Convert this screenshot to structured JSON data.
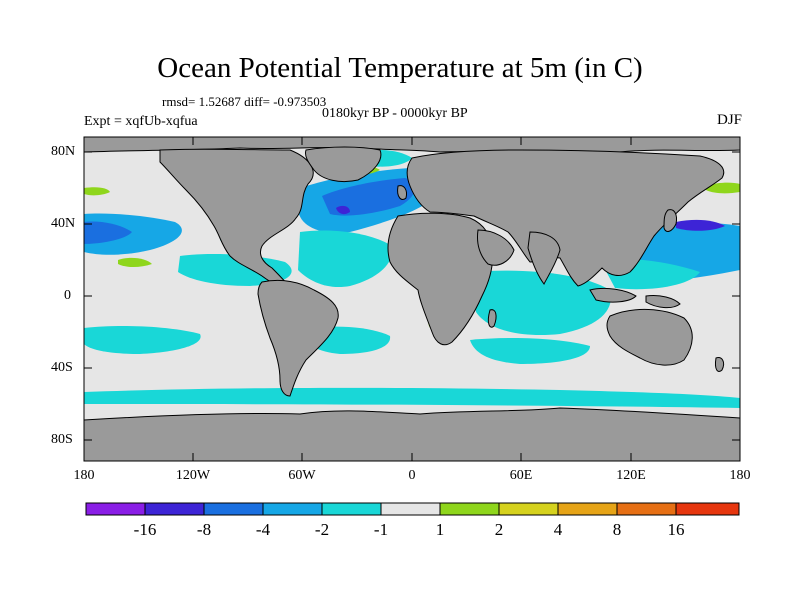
{
  "title": "Ocean Potential Temperature at 5m (in C)",
  "stats_line": "rmsd= 1.52687 diff= -0.973503",
  "period": "0180kyr BP - 0000kyr BP",
  "experiment": "Expt = xqfUb-xqfua",
  "season": "DJF",
  "lat_labels": [
    "80N",
    "40N",
    "0",
    "40S",
    "80S"
  ],
  "lon_labels": [
    "180",
    "120W",
    "60W",
    "0",
    "60E",
    "120E",
    "180"
  ],
  "colorbar": {
    "labels": [
      "-16",
      "-8",
      "-4",
      "-2",
      "-1",
      "1",
      "2",
      "4",
      "8",
      "16"
    ],
    "colors": [
      "#8a1ee6",
      "#3d24d6",
      "#1a6fe0",
      "#16a7e6",
      "#19d7d7",
      "#e6e6e6",
      "#8fd61c",
      "#d6d21e",
      "#e6a417",
      "#e66f14",
      "#e6360e"
    ]
  },
  "map": {
    "land_color": "#9a9a9a",
    "no_change_color": "#e6e6e6"
  }
}
